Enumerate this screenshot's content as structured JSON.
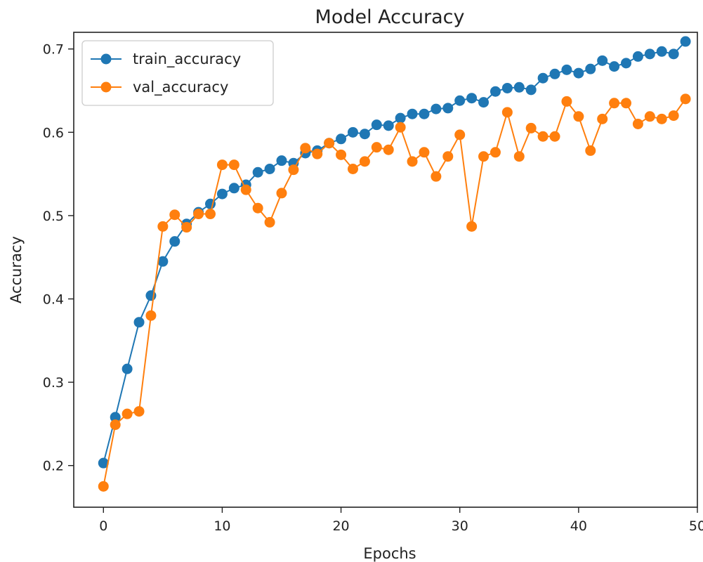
{
  "chart_data": {
    "type": "line",
    "title": "Model Accuracy",
    "xlabel": "Epochs",
    "ylabel": "Accuracy",
    "xlim": [
      -2.5,
      50
    ],
    "ylim": [
      0.15,
      0.72
    ],
    "xticks": [
      0,
      10,
      20,
      30,
      40,
      50
    ],
    "yticks": [
      0.2,
      0.3,
      0.4,
      0.5,
      0.6,
      0.7
    ],
    "grid": false,
    "legend_position": "top-left",
    "x": [
      0,
      1,
      2,
      3,
      4,
      5,
      6,
      7,
      8,
      9,
      10,
      11,
      12,
      13,
      14,
      15,
      16,
      17,
      18,
      19,
      20,
      21,
      22,
      23,
      24,
      25,
      26,
      27,
      28,
      29,
      30,
      31,
      32,
      33,
      34,
      35,
      36,
      37,
      38,
      39,
      40,
      41,
      42,
      43,
      44,
      45,
      46,
      47,
      48,
      49
    ],
    "series": [
      {
        "name": "train_accuracy",
        "color": "#1f77b4",
        "values": [
          0.203,
          0.258,
          0.316,
          0.372,
          0.404,
          0.445,
          0.469,
          0.49,
          0.504,
          0.514,
          0.526,
          0.533,
          0.537,
          0.552,
          0.556,
          0.566,
          0.563,
          0.575,
          0.578,
          0.587,
          0.592,
          0.6,
          0.598,
          0.609,
          0.608,
          0.617,
          0.622,
          0.622,
          0.628,
          0.629,
          0.638,
          0.641,
          0.636,
          0.649,
          0.653,
          0.654,
          0.651,
          0.665,
          0.67,
          0.675,
          0.671,
          0.676,
          0.686,
          0.679,
          0.683,
          0.691,
          0.694,
          0.697,
          0.694,
          0.709
        ]
      },
      {
        "name": "val_accuracy",
        "color": "#ff7f0e",
        "values": [
          0.175,
          0.249,
          0.262,
          0.265,
          0.38,
          0.487,
          0.501,
          0.486,
          0.502,
          0.502,
          0.561,
          0.561,
          0.531,
          0.509,
          0.492,
          0.527,
          0.555,
          0.581,
          0.574,
          0.587,
          0.573,
          0.556,
          0.565,
          0.582,
          0.579,
          0.606,
          0.565,
          0.576,
          0.547,
          0.571,
          0.597,
          0.487,
          0.571,
          0.576,
          0.624,
          0.571,
          0.605,
          0.595,
          0.595,
          0.637,
          0.619,
          0.578,
          0.616,
          0.635,
          0.635,
          0.61,
          0.619,
          0.616,
          0.62,
          0.64
        ]
      }
    ]
  }
}
